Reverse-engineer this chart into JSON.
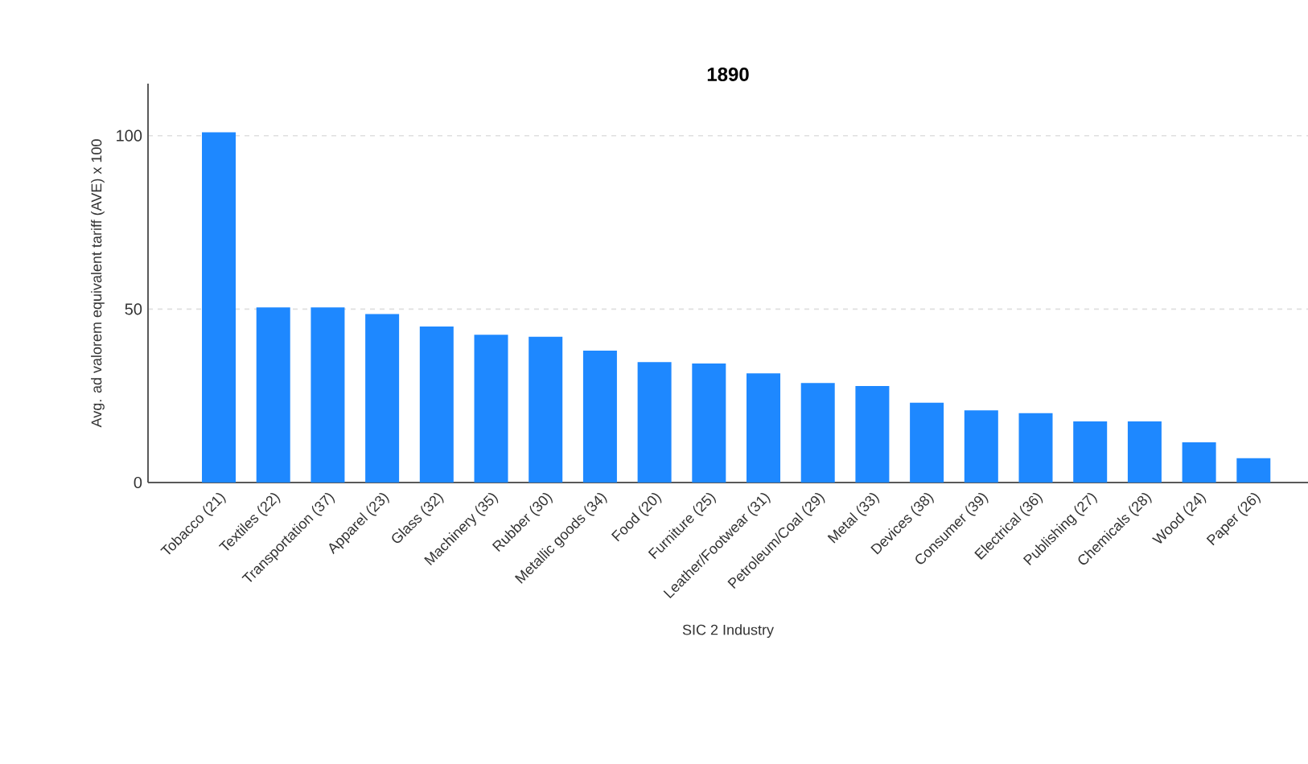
{
  "chart_data": {
    "type": "bar",
    "title": "1890",
    "xlabel": "SIC 2 Industry",
    "ylabel": "Avg. ad valorem equivalent tariff (AVE) x 100",
    "categories": [
      "Tobacco (21)",
      "Textiles (22)",
      "Transportation (37)",
      "Apparel (23)",
      "Glass (32)",
      "Machinery (35)",
      "Rubber (30)",
      "Metallic goods (34)",
      "Food (20)",
      "Furniture (25)",
      "Leather/Footwear (31)",
      "Petroleum/Coal (29)",
      "Metal (33)",
      "Devices (38)",
      "Consumer (39)",
      "Electrical (36)",
      "Publishing (27)",
      "Chemicals (28)",
      "Wood (24)",
      "Paper (26)"
    ],
    "values": [
      101,
      50.5,
      50.5,
      48.6,
      45,
      42.6,
      42,
      38,
      34.7,
      34.3,
      31.5,
      28.7,
      27.8,
      23,
      20.8,
      20,
      17.6,
      17.6,
      11.6,
      7
    ],
    "color": "#1e88ff",
    "ylim": [
      0,
      115
    ],
    "yticks": [
      0,
      50,
      100
    ],
    "grid": "y"
  }
}
